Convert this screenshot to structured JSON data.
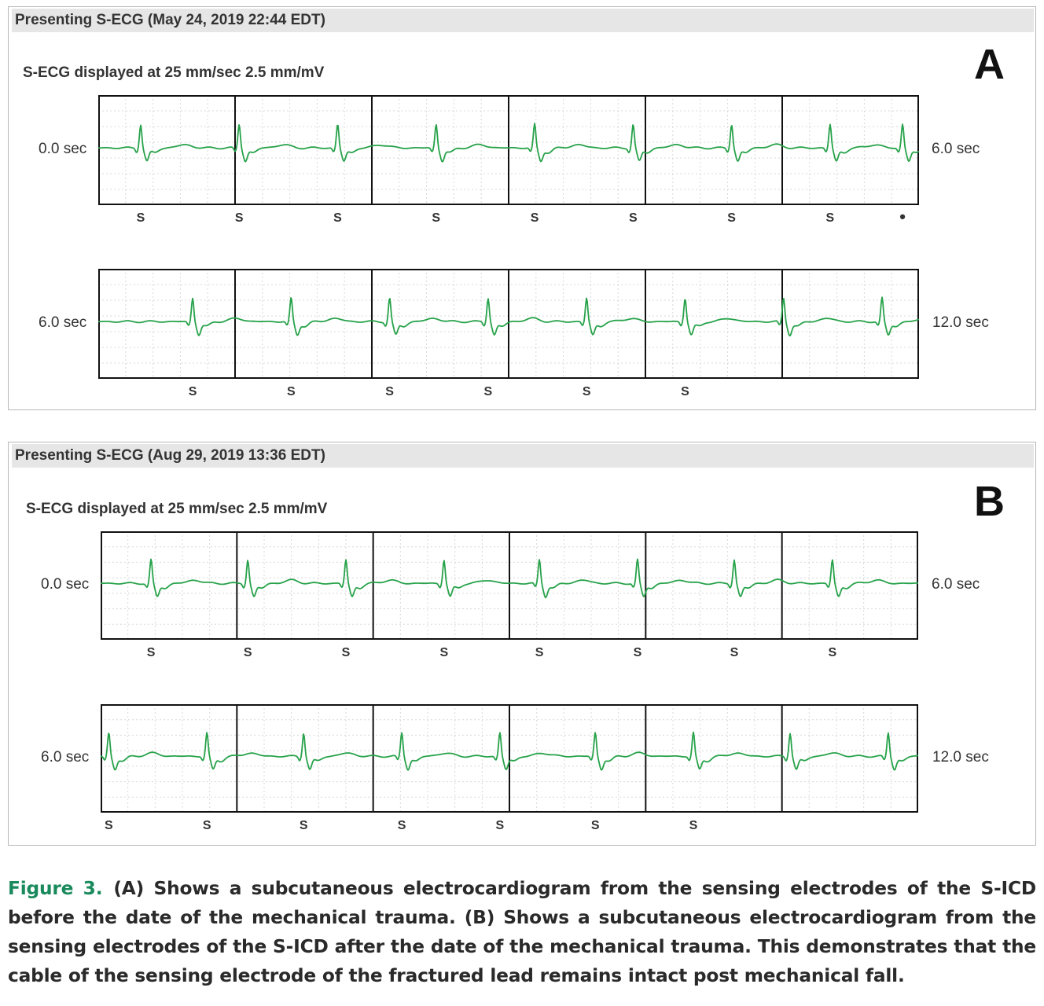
{
  "colors": {
    "trace": "#27a24a",
    "grid": "#d8d8d8",
    "header_bg": "#e6e6e6",
    "figure_label": "#1a8a5c"
  },
  "panels": [
    {
      "header": "Presenting S-ECG (May 24, 2019 22:44 EDT)",
      "subtitle": "S-ECG displayed at 25 mm/sec 2.5 mm/mV",
      "letter": "A",
      "rows": [
        {
          "start": "0.0 sec",
          "end": "6.0 sec",
          "beats_sec": [
            0.31,
            1.03,
            1.75,
            2.47,
            3.19,
            3.91,
            4.63,
            5.35,
            5.88
          ],
          "markers": [
            {
              "t": 0.31,
              "label": "S"
            },
            {
              "t": 1.03,
              "label": "S"
            },
            {
              "t": 1.75,
              "label": "S"
            },
            {
              "t": 2.47,
              "label": "S"
            },
            {
              "t": 3.19,
              "label": "S"
            },
            {
              "t": 3.91,
              "label": "S"
            },
            {
              "t": 4.63,
              "label": "S"
            },
            {
              "t": 5.35,
              "label": "S"
            },
            {
              "t": 5.88,
              "label": "•"
            }
          ]
        },
        {
          "start": "6.0 sec",
          "end": "12.0 sec",
          "beats_sec": [
            0.69,
            1.41,
            2.13,
            2.85,
            3.57,
            4.29,
            5.01,
            5.73
          ],
          "markers": [
            {
              "t": 0.69,
              "label": "S"
            },
            {
              "t": 1.41,
              "label": "S"
            },
            {
              "t": 2.13,
              "label": "S"
            },
            {
              "t": 2.85,
              "label": "S"
            },
            {
              "t": 3.57,
              "label": "S"
            },
            {
              "t": 4.29,
              "label": "S"
            }
          ]
        }
      ]
    },
    {
      "header": "Presenting S-ECG (Aug 29, 2019 13:36 EDT)",
      "subtitle": "S-ECG displayed at 25 mm/sec 2.5 mm/mV",
      "letter": "B",
      "rows": [
        {
          "start": "0.0 sec",
          "end": "6.0 sec",
          "beats_sec": [
            0.37,
            1.08,
            1.8,
            2.52,
            3.22,
            3.94,
            4.65,
            5.37
          ],
          "markers": [
            {
              "t": 0.37,
              "label": "S"
            },
            {
              "t": 1.08,
              "label": "S"
            },
            {
              "t": 1.8,
              "label": "S"
            },
            {
              "t": 2.52,
              "label": "S"
            },
            {
              "t": 3.22,
              "label": "S"
            },
            {
              "t": 3.94,
              "label": "S"
            },
            {
              "t": 4.65,
              "label": "S"
            },
            {
              "t": 5.37,
              "label": "S"
            }
          ]
        },
        {
          "start": "6.0 sec",
          "end": "12.0 sec",
          "beats_sec": [
            0.06,
            0.78,
            1.49,
            2.21,
            2.93,
            3.63,
            4.35,
            5.06,
            5.78
          ],
          "markers": [
            {
              "t": 0.06,
              "label": "S"
            },
            {
              "t": 0.78,
              "label": "S"
            },
            {
              "t": 1.49,
              "label": "S"
            },
            {
              "t": 2.21,
              "label": "S"
            },
            {
              "t": 2.93,
              "label": "S"
            },
            {
              "t": 3.63,
              "label": "S"
            },
            {
              "t": 4.35,
              "label": "S"
            }
          ]
        }
      ]
    }
  ],
  "caption": {
    "label": "Figure 3.",
    "text": "(A) Shows a subcutaneous electrocardiogram from the sensing electrodes of the S-ICD before the date of the mechanical trauma. (B) Shows a subcutaneous electrocardiogram from the sensing electrodes of the S-ICD after the date of the mechanical trauma. This demonstrates that the cable of the sensing electrode of the fractured lead remains intact post mechanical fall."
  }
}
